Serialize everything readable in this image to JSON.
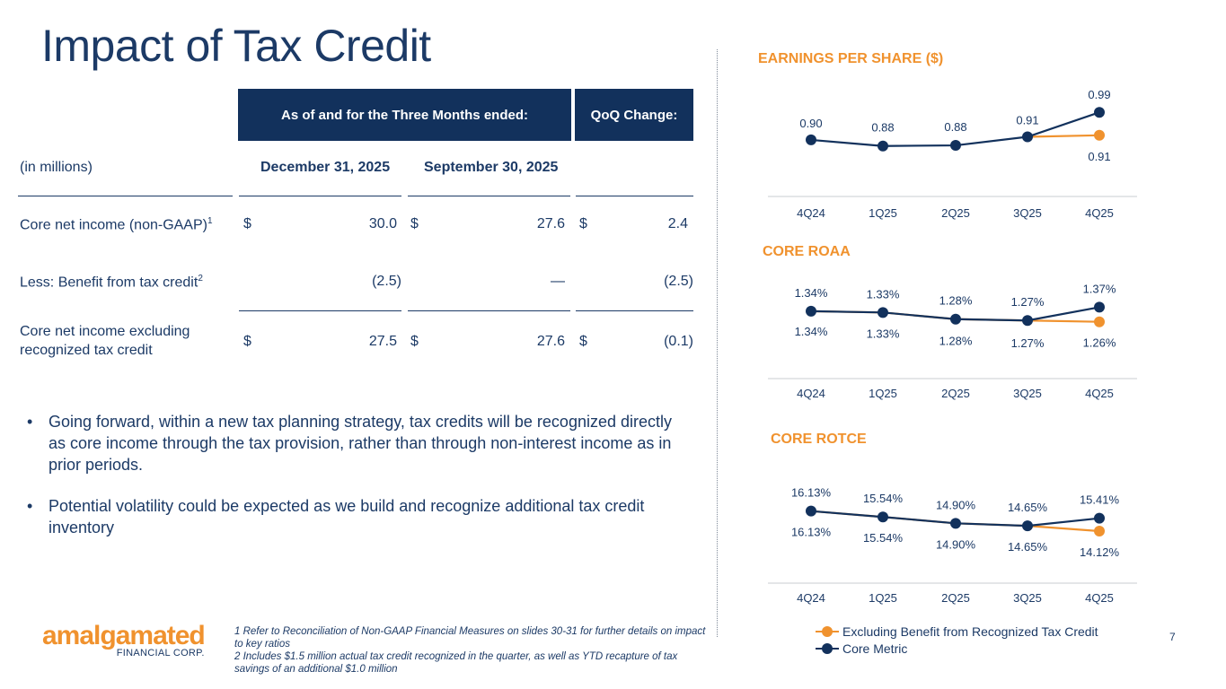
{
  "title": "Impact of Tax Credit",
  "table": {
    "header_period": "As of and for the Three Months ended:",
    "header_change": "QoQ Change:",
    "units_label": "(in millions)",
    "col1": "December 31, 2025",
    "col2": "September 30, 2025",
    "rows": [
      {
        "label": "Core net income (non-GAAP)",
        "sup": "1",
        "cur1": "$",
        "v1": "30.0",
        "cur2": "$",
        "v2": "27.6",
        "cur3": "$",
        "v3": "2.4"
      },
      {
        "label": "Less: Benefit from tax credit",
        "sup": "2",
        "cur1": "",
        "v1": "(2.5)",
        "cur2": "",
        "v2": "—",
        "cur3": "",
        "v3": "(2.5)"
      },
      {
        "label_line1": "Core net income excluding",
        "label_line2": "recognized tax credit",
        "cur1": "$",
        "v1": "27.5",
        "cur2": "$",
        "v2": "27.6",
        "cur3": "$",
        "v3": "(0.1)"
      }
    ]
  },
  "bullets": [
    "Going forward, within a new tax planning strategy, tax credits will be recognized directly as core income through the tax provision, rather than through non-interest income as in prior periods.",
    "Potential volatility could be expected as we build and recognize additional tax credit inventory"
  ],
  "bullet_symbol": "•",
  "footnotes": [
    "1 Refer to Reconciliation of Non-GAAP Financial Measures on slides 30-31 for further details on impact to key ratios",
    "2 Includes $1.5 million actual tax credit recognized in the quarter, as well as YTD recapture of tax savings of an additional $1.0 million"
  ],
  "logo": {
    "word": "amalgamated",
    "sub": "FINANCIAL CORP."
  },
  "page_number": "7",
  "colors": {
    "navy": "#12315c",
    "orange": "#f0922e"
  },
  "legend": {
    "excluding": "Excluding Benefit from Recognized Tax Credit",
    "core": "Core Metric"
  },
  "chart_data": [
    {
      "type": "line",
      "title": "EARNINGS PER SHARE ($)",
      "categories": [
        "4Q24",
        "1Q25",
        "2Q25",
        "3Q25",
        "4Q25"
      ],
      "ylim": [
        0.8,
        1.02
      ],
      "series": [
        {
          "name": "Excluding Benefit from Recognized Tax Credit",
          "values": [
            null,
            null,
            null,
            0.91,
            0.915
          ],
          "labels": [
            null,
            null,
            null,
            null,
            "0.91"
          ]
        },
        {
          "name": "Core Metric",
          "values": [
            0.9,
            0.88,
            0.882,
            0.91,
            0.99
          ],
          "labels": [
            "0.90",
            "0.88",
            "0.88",
            "0.91",
            "0.99"
          ]
        }
      ]
    },
    {
      "type": "line",
      "title": "CORE ROAA",
      "categories": [
        "4Q24",
        "1Q25",
        "2Q25",
        "3Q25",
        "4Q25"
      ],
      "ylim": [
        1.15,
        1.42
      ],
      "series": [
        {
          "name": "Excluding Benefit from Recognized Tax Credit",
          "values": [
            1.34,
            1.33,
            1.28,
            1.27,
            1.26
          ],
          "labels": [
            "1.34%",
            "1.33%",
            "1.28%",
            "1.27%",
            "1.26%"
          ]
        },
        {
          "name": "Core Metric",
          "values": [
            1.34,
            1.33,
            1.28,
            1.27,
            1.37
          ],
          "labels": [
            "1.34%",
            "1.33%",
            "1.28%",
            "1.27%",
            "1.37%"
          ]
        }
      ]
    },
    {
      "type": "line",
      "title": "CORE ROTCE",
      "categories": [
        "4Q24",
        "1Q25",
        "2Q25",
        "3Q25",
        "4Q25"
      ],
      "ylim": [
        12.5,
        17.0
      ],
      "series": [
        {
          "name": "Excluding Benefit from Recognized Tax Credit",
          "values": [
            16.13,
            15.54,
            14.9,
            14.65,
            14.12
          ],
          "labels": [
            "16.13%",
            "15.54%",
            "14.90%",
            "14.65%",
            "14.12%"
          ]
        },
        {
          "name": "Core Metric",
          "values": [
            16.13,
            15.54,
            14.9,
            14.65,
            15.41
          ],
          "labels": [
            "16.13%",
            "15.54%",
            "14.90%",
            "14.65%",
            "15.41%"
          ]
        }
      ]
    }
  ]
}
